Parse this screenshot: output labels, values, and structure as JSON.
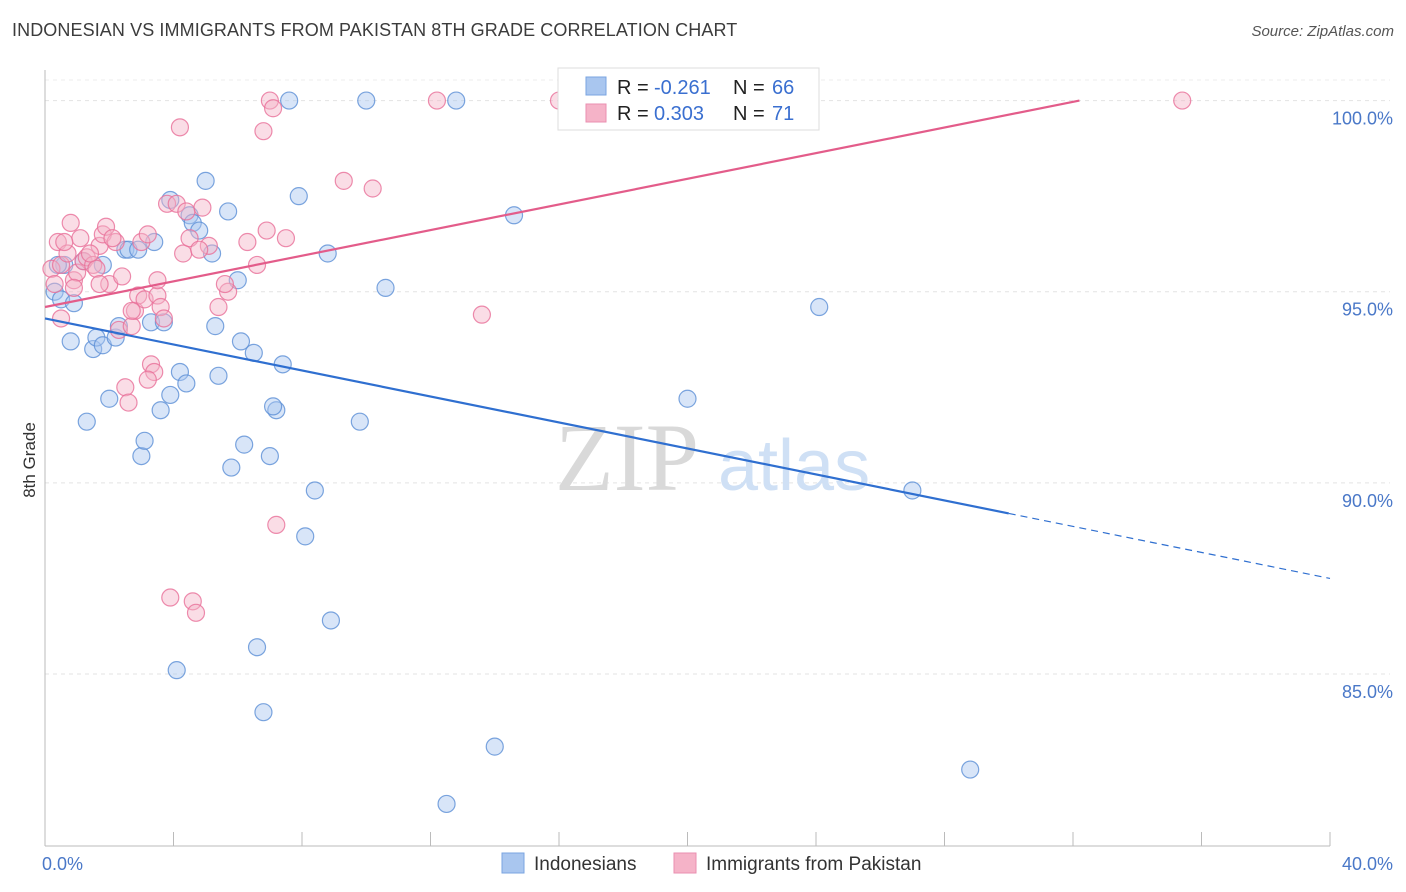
{
  "title": "INDONESIAN VS IMMIGRANTS FROM PAKISTAN 8TH GRADE CORRELATION CHART",
  "source": "Source: ZipAtlas.com",
  "watermark": {
    "zip": "ZIP",
    "atlas": "atlas"
  },
  "legend_box": {
    "rows": [
      {
        "r_label": "R = ",
        "r_value": "-0.261",
        "n_label": "N = ",
        "n_value": "66",
        "color": "#a9c6ef"
      },
      {
        "r_label": "R = ",
        "r_value": "0.303",
        "n_label": "N = ",
        "n_value": "71",
        "color": "#f5b3c8"
      }
    ]
  },
  "chart_data": {
    "type": "scatter",
    "title": "INDONESIAN VS IMMIGRANTS FROM PAKISTAN 8TH GRADE CORRELATION CHART",
    "xlabel": "",
    "ylabel": "8th Grade",
    "xlim": [
      0,
      40
    ],
    "ylim": [
      80.5,
      100.8
    ],
    "x_tick_labels": [
      "0.0%",
      "40.0%"
    ],
    "y_ticks": [
      85,
      90,
      95,
      100
    ],
    "y_tick_labels": [
      "85.0%",
      "90.0%",
      "95.0%",
      "100.0%"
    ],
    "series": [
      {
        "name": "Indonesians",
        "color": "#5b8fd6",
        "fill": "#a9c6ef",
        "trend": {
          "x0": 0,
          "y0": 94.3,
          "x1": 30,
          "y1": 89.2,
          "dash_to_x": 40,
          "dash_to_y": 87.5,
          "color": "#2f6fd0"
        },
        "points": [
          [
            0.3,
            95.0
          ],
          [
            0.5,
            94.8
          ],
          [
            0.6,
            95.7
          ],
          [
            0.9,
            94.7
          ],
          [
            0.8,
            93.7
          ],
          [
            1.3,
            91.6
          ],
          [
            1.5,
            93.5
          ],
          [
            1.6,
            93.8
          ],
          [
            1.8,
            95.7
          ],
          [
            1.8,
            93.6
          ],
          [
            2.0,
            92.2
          ],
          [
            2.2,
            93.8
          ],
          [
            2.3,
            94.1
          ],
          [
            2.5,
            96.1
          ],
          [
            2.6,
            96.1
          ],
          [
            2.9,
            96.1
          ],
          [
            3.0,
            90.7
          ],
          [
            3.1,
            91.1
          ],
          [
            3.3,
            94.2
          ],
          [
            3.4,
            96.3
          ],
          [
            3.6,
            91.9
          ],
          [
            3.7,
            94.2
          ],
          [
            3.9,
            92.3
          ],
          [
            3.9,
            97.4
          ],
          [
            4.1,
            85.1
          ],
          [
            4.2,
            92.9
          ],
          [
            4.4,
            92.6
          ],
          [
            4.5,
            97.0
          ],
          [
            4.6,
            96.8
          ],
          [
            4.8,
            96.6
          ],
          [
            5.0,
            97.9
          ],
          [
            5.2,
            96.0
          ],
          [
            5.3,
            94.1
          ],
          [
            5.4,
            92.8
          ],
          [
            5.8,
            90.4
          ],
          [
            6.0,
            95.3
          ],
          [
            6.1,
            93.7
          ],
          [
            6.2,
            91.0
          ],
          [
            6.5,
            93.4
          ],
          [
            6.6,
            85.7
          ],
          [
            6.8,
            84.0
          ],
          [
            7.0,
            90.7
          ],
          [
            7.2,
            91.9
          ],
          [
            7.4,
            93.1
          ],
          [
            7.6,
            100.0
          ],
          [
            7.9,
            97.5
          ],
          [
            8.1,
            88.6
          ],
          [
            8.4,
            89.8
          ],
          [
            8.8,
            96.0
          ],
          [
            8.9,
            86.4
          ],
          [
            9.8,
            91.6
          ],
          [
            10.0,
            100.0
          ],
          [
            10.6,
            95.1
          ],
          [
            12.5,
            81.6
          ],
          [
            12.8,
            100.0
          ],
          [
            14.0,
            83.1
          ],
          [
            14.6,
            97.0
          ],
          [
            18.9,
            100.0
          ],
          [
            20.0,
            92.2
          ],
          [
            24.1,
            94.6
          ],
          [
            27.0,
            89.8
          ],
          [
            28.8,
            82.5
          ],
          [
            1.2,
            95.8
          ],
          [
            0.4,
            95.7
          ],
          [
            5.7,
            97.1
          ],
          [
            7.1,
            92.0
          ]
        ]
      },
      {
        "name": "Immigrants from Pakistan",
        "color": "#e86f99",
        "fill": "#f5b3c8",
        "trend": {
          "x0": 0,
          "y0": 94.6,
          "x1": 32.2,
          "y1": 100.0,
          "color": "#e35c8a"
        },
        "points": [
          [
            0.2,
            95.6
          ],
          [
            0.3,
            95.2
          ],
          [
            0.4,
            96.3
          ],
          [
            0.5,
            95.7
          ],
          [
            0.5,
            94.3
          ],
          [
            0.7,
            96.0
          ],
          [
            0.8,
            96.8
          ],
          [
            0.9,
            95.3
          ],
          [
            1.0,
            95.5
          ],
          [
            1.1,
            96.4
          ],
          [
            1.2,
            95.8
          ],
          [
            1.3,
            95.9
          ],
          [
            1.5,
            95.7
          ],
          [
            1.6,
            95.6
          ],
          [
            1.7,
            96.2
          ],
          [
            1.8,
            96.5
          ],
          [
            1.9,
            96.7
          ],
          [
            2.0,
            95.2
          ],
          [
            2.2,
            96.3
          ],
          [
            2.3,
            94.0
          ],
          [
            2.4,
            95.4
          ],
          [
            2.5,
            92.5
          ],
          [
            2.6,
            92.1
          ],
          [
            2.7,
            94.1
          ],
          [
            2.8,
            94.5
          ],
          [
            2.9,
            94.9
          ],
          [
            3.0,
            96.3
          ],
          [
            3.1,
            94.8
          ],
          [
            3.2,
            96.5
          ],
          [
            3.3,
            93.1
          ],
          [
            3.4,
            92.9
          ],
          [
            3.5,
            94.9
          ],
          [
            3.6,
            94.6
          ],
          [
            3.7,
            94.3
          ],
          [
            3.8,
            97.3
          ],
          [
            3.9,
            87.0
          ],
          [
            4.1,
            97.3
          ],
          [
            4.2,
            99.3
          ],
          [
            4.3,
            96.0
          ],
          [
            4.5,
            96.4
          ],
          [
            4.6,
            86.9
          ],
          [
            4.7,
            86.6
          ],
          [
            4.9,
            97.2
          ],
          [
            5.1,
            96.2
          ],
          [
            5.4,
            94.6
          ],
          [
            5.7,
            95.0
          ],
          [
            6.3,
            96.3
          ],
          [
            6.6,
            95.7
          ],
          [
            6.9,
            96.6
          ],
          [
            7.0,
            100.0
          ],
          [
            7.1,
            99.8
          ],
          [
            7.2,
            88.9
          ],
          [
            7.5,
            96.4
          ],
          [
            9.3,
            97.9
          ],
          [
            10.2,
            97.7
          ],
          [
            12.2,
            100.0
          ],
          [
            13.6,
            94.4
          ],
          [
            16.0,
            100.0
          ],
          [
            35.4,
            100.0
          ],
          [
            6.8,
            99.2
          ],
          [
            0.9,
            95.1
          ],
          [
            1.4,
            96.0
          ],
          [
            2.1,
            96.4
          ],
          [
            3.5,
            95.3
          ],
          [
            4.4,
            97.1
          ],
          [
            5.6,
            95.2
          ],
          [
            0.6,
            96.3
          ],
          [
            1.7,
            95.2
          ],
          [
            3.2,
            92.7
          ],
          [
            4.8,
            96.1
          ],
          [
            2.7,
            94.5
          ]
        ]
      }
    ]
  },
  "bottom_legend": [
    {
      "label": "Indonesians",
      "color": "#a9c6ef"
    },
    {
      "label": "Immigrants from Pakistan",
      "color": "#f5b3c8"
    }
  ]
}
